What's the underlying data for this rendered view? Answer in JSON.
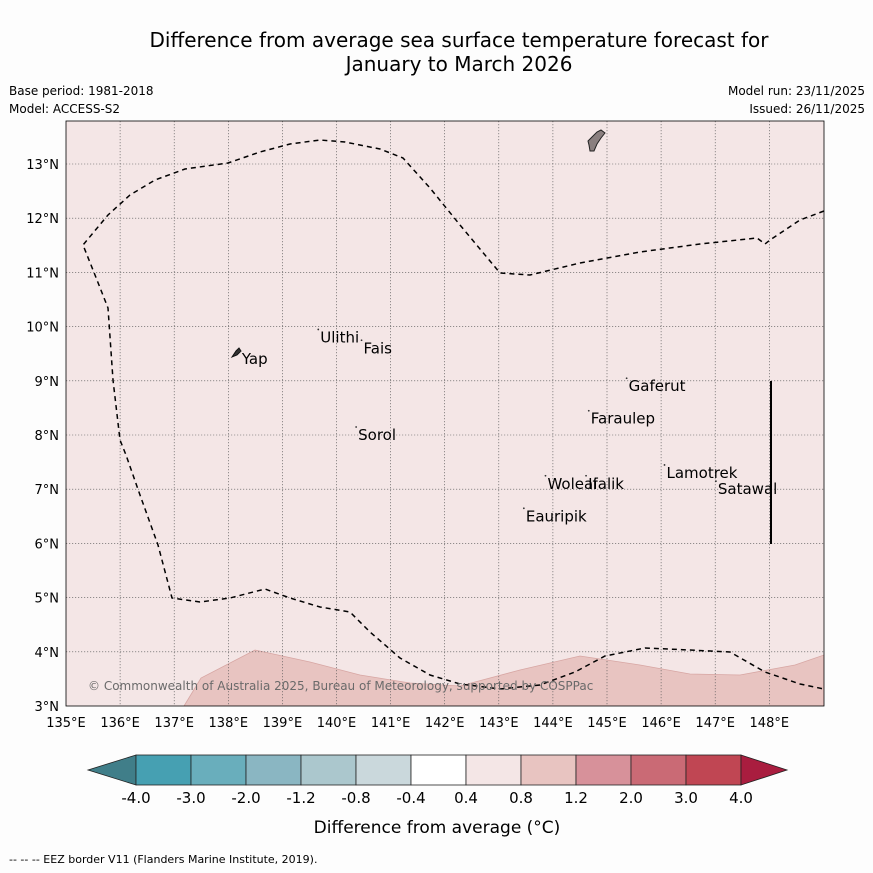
{
  "title_line1": "Difference from average sea surface temperature forecast for",
  "title_line2": "January to March 2026",
  "base_period": "Base period: 1981-2018",
  "model": "Model: ACCESS-S2",
  "model_run": "Model run: 23/11/2025",
  "issued": "Issued: 26/11/2025",
  "copyright": "© Commonwealth of Australia 2025, Bureau of Meteorology, supported by COSPPac",
  "footer_note": "--  --  -- EEZ border V11 (Flanders Marine Institute, 2019).",
  "map": {
    "lon_ticks": [
      "135°E",
      "136°E",
      "137°E",
      "138°E",
      "139°E",
      "140°E",
      "141°E",
      "142°E",
      "143°E",
      "144°E",
      "145°E",
      "146°E",
      "147°E",
      "148°E"
    ],
    "lat_ticks": [
      "3°N",
      "4°N",
      "5°N",
      "6°N",
      "7°N",
      "8°N",
      "9°N",
      "10°N",
      "11°N",
      "12°N",
      "13°N"
    ],
    "lon_range": [
      135,
      149
    ],
    "lat_range": [
      3,
      13.8
    ],
    "places": [
      {
        "name": "Ulithi",
        "lon": 139.7,
        "lat": 9.8
      },
      {
        "name": "Fais",
        "lon": 140.5,
        "lat": 9.6
      },
      {
        "name": "Yap",
        "lon": 138.25,
        "lat": 9.4
      },
      {
        "name": "Gaferut",
        "lon": 145.4,
        "lat": 8.9
      },
      {
        "name": "Faraulep",
        "lon": 144.7,
        "lat": 8.3
      },
      {
        "name": "Sorol",
        "lon": 140.4,
        "lat": 8.0
      },
      {
        "name": "Lamotrek",
        "lon": 146.1,
        "lat": 7.3
      },
      {
        "name": "Woleai",
        "lon": 143.9,
        "lat": 7.1
      },
      {
        "name": "Ifalik",
        "lon": 144.65,
        "lat": 7.1
      },
      {
        "name": "Satawal",
        "lon": 147.05,
        "lat": 7.0
      },
      {
        "name": "Eauripik",
        "lon": 143.5,
        "lat": 6.5
      }
    ]
  },
  "colorbar": {
    "labels": [
      "-4.0",
      "-3.0",
      "-2.0",
      "-1.2",
      "-0.8",
      "-0.4",
      "0.4",
      "0.8",
      "1.2",
      "2.0",
      "3.0",
      "4.0"
    ],
    "colors": [
      "#407e89",
      "#46a0b2",
      "#69aebc",
      "#8ab6c2",
      "#abc7cd",
      "#cad8dc",
      "#ffffff",
      "#f4e6e6",
      "#e8c4c1",
      "#d7919a",
      "#ca6a75",
      "#c04653",
      "#a91d3f"
    ],
    "label": "Difference from average (°C)"
  }
}
